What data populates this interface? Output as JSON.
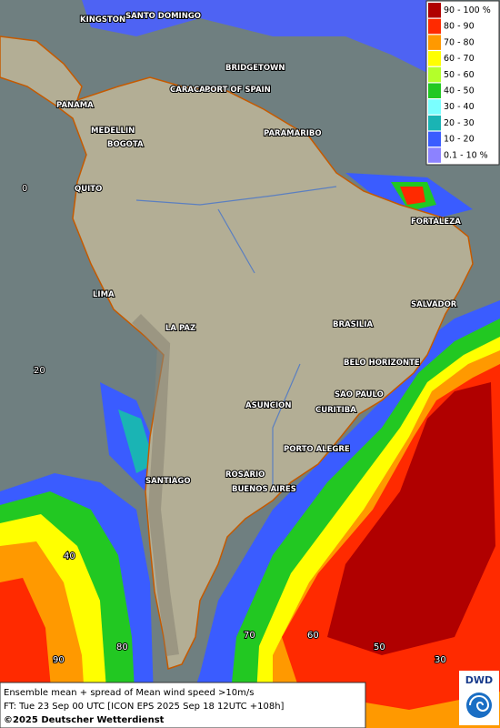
{
  "cities": [
    "KINGSTON",
    "SANTO DOMINGO",
    "BRIDGETOWN",
    "CARACAS",
    "PORT OF SPAIN",
    "PANAMA",
    "MEDELLIN",
    "BOGOTA",
    "PARAMARIBO",
    "QUITO",
    "FORTALEZA",
    "LIMA",
    "SALVADOR",
    "LA PAZ",
    "BRASILIA",
    "BELO HORIZONTE",
    "ASUNCION",
    "SAO PAULO",
    "CURITIBA",
    "PORTO ALEGRE",
    "SANTIAGO",
    "ROSARIO",
    "BUENOS AIRES"
  ],
  "latitude_labels": [
    "0",
    "20",
    "40"
  ],
  "longitude_labels": [
    "90",
    "80",
    "70",
    "60",
    "50",
    "30"
  ],
  "legend": [
    {
      "label": "90 - 100 %",
      "color": "#b00000"
    },
    {
      "label": "80 - 90",
      "color": "#ff2a00"
    },
    {
      "label": "70 - 80",
      "color": "#ff9900"
    },
    {
      "label": "60 - 70",
      "color": "#ffff00"
    },
    {
      "label": "50 - 60",
      "color": "#b4ff2a"
    },
    {
      "label": "40 - 50",
      "color": "#22c822"
    },
    {
      "label": "30 - 40",
      "color": "#7affff"
    },
    {
      "label": "20 - 30",
      "color": "#1ab4b4"
    },
    {
      "label": "10 - 20",
      "color": "#3a5cff"
    },
    {
      "label": "0.1 - 10 %",
      "color": "#8c82ff"
    }
  ],
  "footer": {
    "line1": "Ensemble mean + spread of Mean wind speed >10m/s",
    "line2": "FT: Tue 23 Sep 00 UTC [ICON EPS 2025 Sep 18 12UTC +108h]",
    "copyright": "©2025 Deutscher Wetterdienst",
    "logo": "DWD"
  }
}
